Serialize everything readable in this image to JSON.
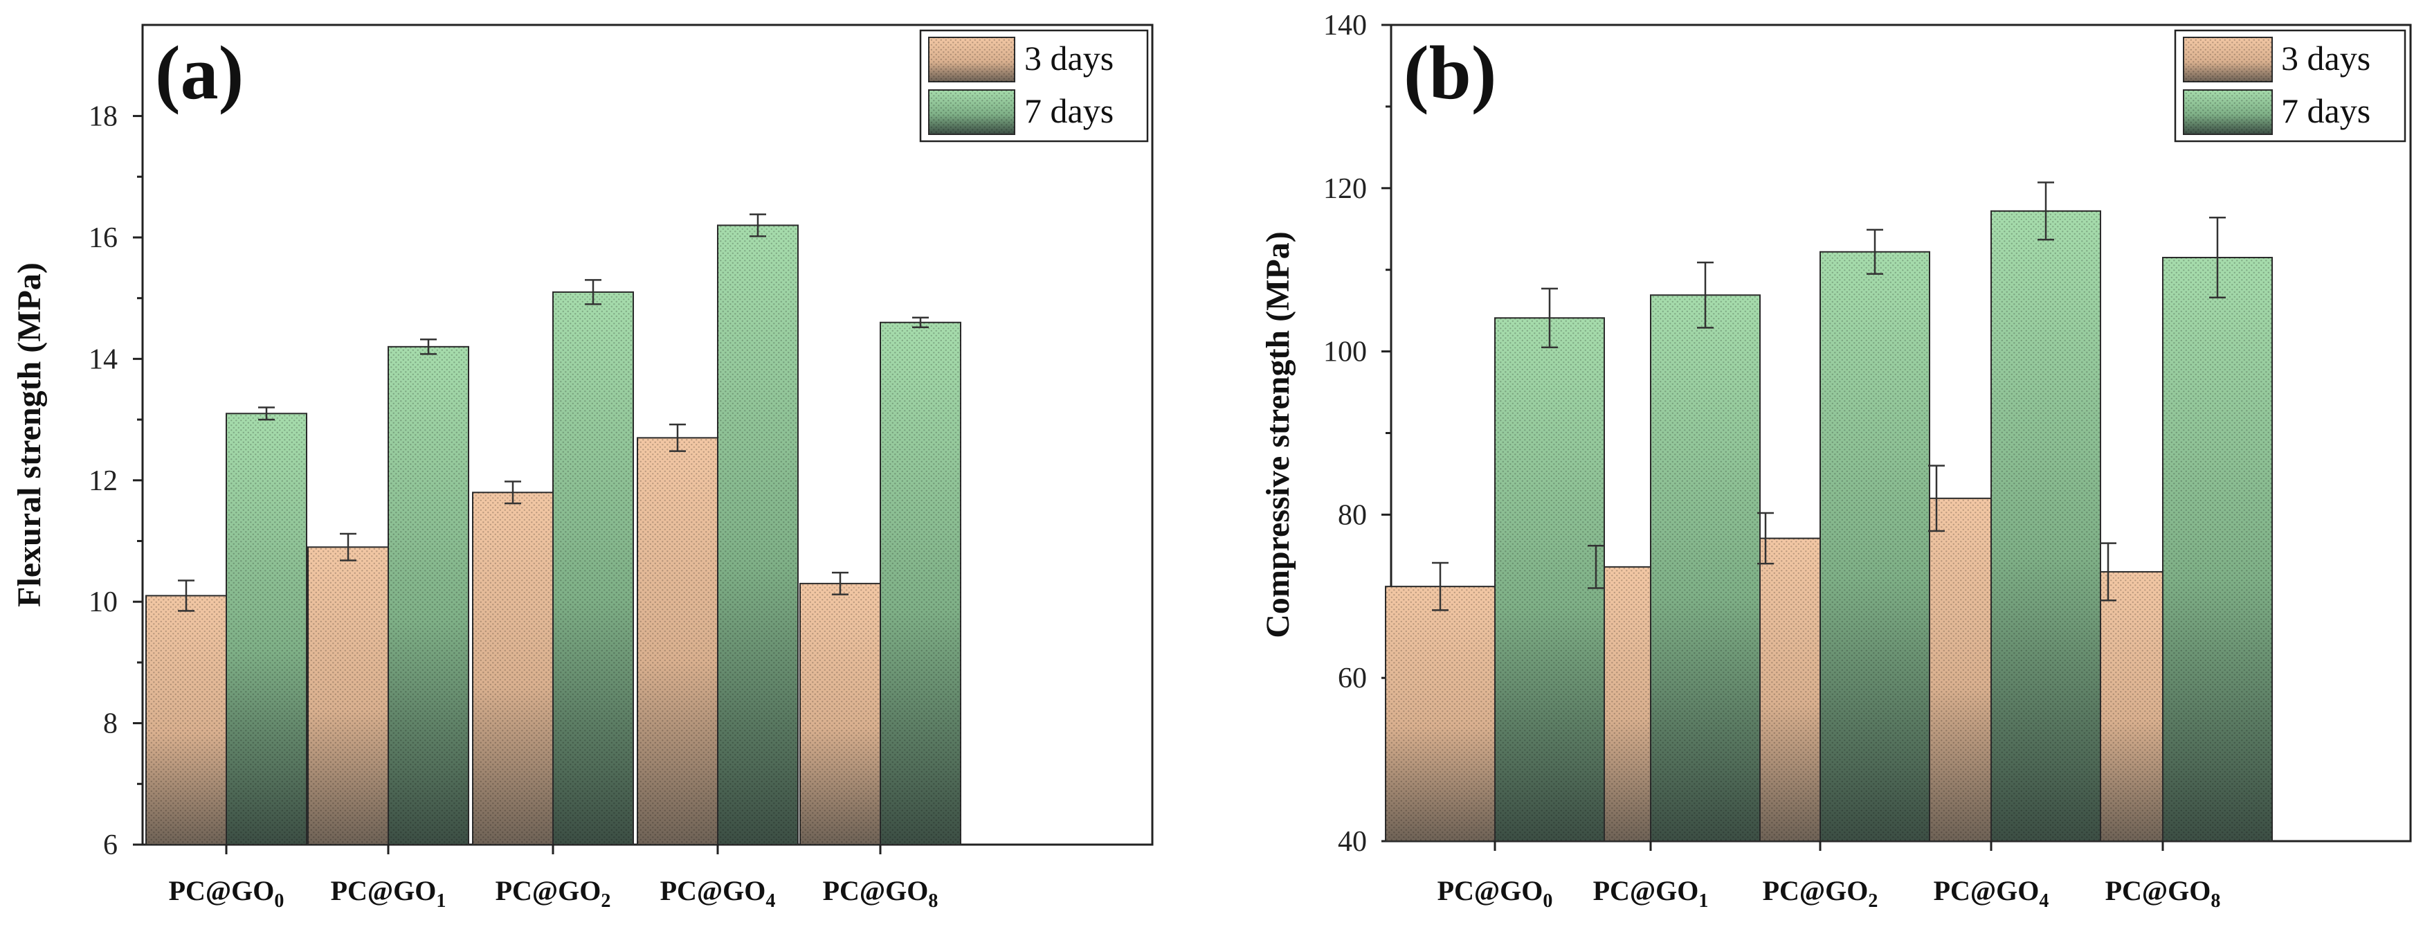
{
  "chart_data": [
    {
      "type": "bar",
      "panel_label": "(a)",
      "categories": [
        "PC@GO",
        "PC@GO",
        "PC@GO",
        "PC@GO",
        "PC@GO"
      ],
      "category_subscripts": [
        "0",
        "1",
        "2",
        "4",
        "8"
      ],
      "series": [
        {
          "name": "3 days",
          "values": [
            10.1,
            10.9,
            11.8,
            12.7,
            10.3
          ],
          "errors": [
            0.25,
            0.22,
            0.18,
            0.22,
            0.18
          ],
          "color_top": "#f2c7a4",
          "color_bottom": "#6e6256"
        },
        {
          "name": "7 days",
          "values": [
            13.1,
            14.2,
            15.1,
            16.2,
            14.6
          ],
          "errors": [
            0.1,
            0.12,
            0.2,
            0.18,
            0.08
          ],
          "color_top": "#a6dcac",
          "color_bottom": "#3c4e44"
        }
      ],
      "title": "",
      "xlabel": "",
      "ylabel": "Flexural strength (MPa)",
      "ylim": [
        6,
        19.5
      ],
      "yticks": [
        6,
        8,
        10,
        12,
        14,
        16,
        18
      ],
      "ytick_labels": [
        "6",
        "8",
        "10",
        "12",
        "14",
        "16",
        "18"
      ],
      "legend": "top-right"
    },
    {
      "type": "bar",
      "panel_label": "(b)",
      "categories": [
        "PC@GO",
        "PC@GO",
        "PC@GO",
        "PC@GO",
        "PC@GO"
      ],
      "category_subscripts": [
        "0",
        "1",
        "2",
        "4",
        "8"
      ],
      "series": [
        {
          "name": "3 days",
          "values": [
            71.2,
            73.6,
            77.1,
            82.0,
            73.0
          ],
          "errors": [
            2.9,
            2.6,
            3.1,
            4.0,
            3.5
          ],
          "color_top": "#f2c7a4",
          "color_bottom": "#6e6256"
        },
        {
          "name": "7 days",
          "values": [
            104.1,
            106.9,
            112.2,
            117.2,
            111.5
          ],
          "errors": [
            3.6,
            4.0,
            2.7,
            3.5,
            4.9
          ],
          "color_top": "#a6dcac",
          "color_bottom": "#3c4e44"
        }
      ],
      "title": "",
      "xlabel": "",
      "ylabel": "Compressive strength (MPa)",
      "ylim": [
        40,
        140
      ],
      "yticks": [
        40,
        60,
        80,
        100,
        120,
        140
      ],
      "ytick_labels": [
        "40",
        "60",
        "80",
        "100",
        "120",
        "140"
      ],
      "legend": "top-right"
    }
  ]
}
